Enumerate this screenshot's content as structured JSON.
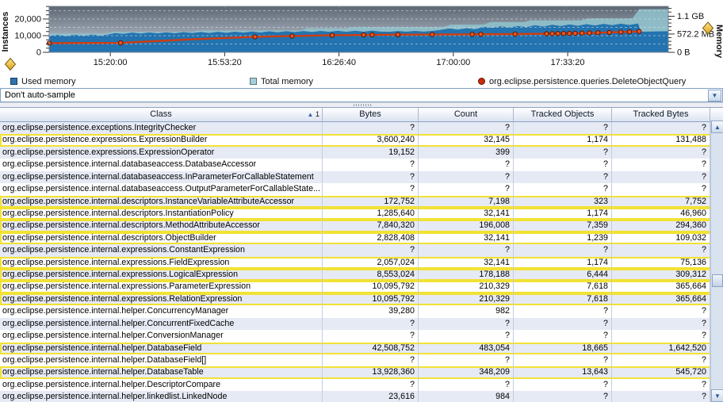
{
  "chart": {
    "legend": [
      {
        "label": "Used memory",
        "color": "#2e72b0",
        "shape": "square"
      },
      {
        "label": "Total memory",
        "color": "#a4d2da",
        "shape": "square"
      },
      {
        "label": "org.eclipse.persistence.queries.DeleteObjectQuery",
        "color": "#cc2b08",
        "shape": "circle"
      }
    ]
  },
  "chart_data": {
    "type": "area",
    "title": "",
    "x_axis": {
      "tick_labels": [
        "15:20:00",
        "15:53:20",
        "16:26:40",
        "17:00:00",
        "17:33:20"
      ],
      "tick_seconds": [
        1070,
        3070,
        5070,
        7070,
        9070
      ],
      "span_seconds": 10830
    },
    "y_left": {
      "title": "Instances",
      "tick_labels": [
        "0",
        "10,000",
        "20,000"
      ],
      "tick_values": [
        0,
        10000,
        20000
      ],
      "max": 27600,
      "minor_step": 2500
    },
    "y_right": {
      "title": "Memory",
      "tick_labels": [
        "0 B",
        "572.2 MB",
        "1.1 GB"
      ],
      "tick_mb": [
        0,
        572.2,
        1126.4
      ],
      "max_mb": 1436,
      "minor_step_mb": 114.4
    },
    "series": [
      {
        "name": "Total memory",
        "kind": "area",
        "axis": "right",
        "color": "#8fc3ce",
        "unit": "MB",
        "points": [
          [
            0,
            588
          ],
          [
            1000,
            588
          ],
          [
            1120,
            640
          ],
          [
            2500,
            640
          ],
          [
            2620,
            680
          ],
          [
            4400,
            680
          ],
          [
            4520,
            755
          ],
          [
            5200,
            755
          ],
          [
            5320,
            790
          ],
          [
            6900,
            790
          ],
          [
            7020,
            868
          ],
          [
            7600,
            868
          ],
          [
            7720,
            948
          ],
          [
            8300,
            948
          ],
          [
            8420,
            1000
          ],
          [
            9300,
            1000
          ],
          [
            9420,
            1058
          ],
          [
            10200,
            1058
          ],
          [
            10320,
            1350
          ],
          [
            10830,
            1350
          ]
        ]
      },
      {
        "name": "Used memory",
        "kind": "area",
        "axis": "right",
        "color": "#2273af",
        "unit": "MB",
        "points": [
          [
            0,
            510
          ],
          [
            150,
            545
          ],
          [
            300,
            505
          ],
          [
            450,
            550
          ],
          [
            600,
            515
          ],
          [
            750,
            555
          ],
          [
            900,
            520
          ],
          [
            1050,
            560
          ],
          [
            1150,
            600
          ],
          [
            1300,
            575
          ],
          [
            1450,
            615
          ],
          [
            1600,
            585
          ],
          [
            1750,
            620
          ],
          [
            1900,
            590
          ],
          [
            2050,
            625
          ],
          [
            2200,
            595
          ],
          [
            2350,
            630
          ],
          [
            2500,
            600
          ],
          [
            2650,
            635
          ],
          [
            2800,
            605
          ],
          [
            2950,
            640
          ],
          [
            3100,
            610
          ],
          [
            3250,
            645
          ],
          [
            3400,
            615
          ],
          [
            3550,
            650
          ],
          [
            3700,
            620
          ],
          [
            3850,
            655
          ],
          [
            4000,
            625
          ],
          [
            4150,
            660
          ],
          [
            4300,
            630
          ],
          [
            4450,
            665
          ],
          [
            4600,
            635
          ],
          [
            4750,
            670
          ],
          [
            4900,
            640
          ],
          [
            5050,
            672
          ],
          [
            5200,
            642
          ],
          [
            5350,
            675
          ],
          [
            5500,
            645
          ],
          [
            5650,
            678
          ],
          [
            5800,
            648
          ],
          [
            5950,
            640
          ],
          [
            6100,
            665
          ],
          [
            6250,
            645
          ],
          [
            6400,
            668
          ],
          [
            6550,
            648
          ],
          [
            6700,
            670
          ],
          [
            6850,
            700
          ],
          [
            7000,
            745
          ],
          [
            7150,
            710
          ],
          [
            7300,
            755
          ],
          [
            7450,
            720
          ],
          [
            7600,
            800
          ],
          [
            7750,
            765
          ],
          [
            7900,
            810
          ],
          [
            8050,
            775
          ],
          [
            8200,
            820
          ],
          [
            8350,
            785
          ],
          [
            8500,
            845
          ],
          [
            8650,
            805
          ],
          [
            8800,
            860
          ],
          [
            8950,
            820
          ],
          [
            9100,
            870
          ],
          [
            9250,
            830
          ],
          [
            9400,
            880
          ],
          [
            9550,
            840
          ],
          [
            9700,
            888
          ],
          [
            9850,
            848
          ],
          [
            10000,
            895
          ],
          [
            10150,
            855
          ],
          [
            10300,
            900
          ],
          [
            10360,
            645
          ],
          [
            10830,
            660
          ]
        ]
      },
      {
        "name": "org.eclipse.persistence.queries.DeleteObjectQuery",
        "kind": "line",
        "axis": "left",
        "color": "#d03c10",
        "unit": "instances",
        "points": [
          [
            0,
            5500,
            1
          ],
          [
            1250,
            5700,
            1
          ],
          [
            2500,
            7800,
            0
          ],
          [
            3600,
            9300,
            1
          ],
          [
            4250,
            9800,
            1
          ],
          [
            4950,
            10250,
            1
          ],
          [
            5500,
            10450,
            1
          ],
          [
            5650,
            10500,
            1
          ],
          [
            6100,
            10600,
            1
          ],
          [
            6700,
            10700,
            1
          ],
          [
            7400,
            10800,
            1
          ],
          [
            7550,
            10830,
            1
          ],
          [
            8150,
            10950,
            1
          ],
          [
            8700,
            11150,
            1
          ],
          [
            8800,
            11200,
            1
          ],
          [
            8900,
            11250,
            1
          ],
          [
            9000,
            11300,
            1
          ],
          [
            9100,
            11350,
            1
          ],
          [
            9200,
            11400,
            1
          ],
          [
            9320,
            11500,
            1
          ],
          [
            9450,
            11600,
            1
          ],
          [
            9600,
            11750,
            1
          ],
          [
            9800,
            11950,
            1
          ],
          [
            10000,
            12150,
            1
          ],
          [
            10150,
            12300,
            1
          ],
          [
            10320,
            12500,
            1
          ]
        ]
      }
    ]
  },
  "toolbar": {
    "sample_mode": "Don't auto-sample",
    "dropdown_arrow": "▼"
  },
  "table": {
    "columns": [
      {
        "label": "Class"
      },
      {
        "label": "Bytes"
      },
      {
        "label": "Count"
      },
      {
        "label": "Tracked Objects"
      },
      {
        "label": "Tracked Bytes"
      }
    ],
    "sort": {
      "indicator": "▲",
      "order_number": "1",
      "column": "Class"
    },
    "rows": [
      {
        "class": "org.eclipse.persistence.exceptions.IntegrityChecker",
        "bytes": "?",
        "count": "?",
        "tracked_objects": "?",
        "tracked_bytes": "?",
        "highlight": false
      },
      {
        "class": "org.eclipse.persistence.expressions.ExpressionBuilder",
        "bytes": "3,600,240",
        "count": "32,145",
        "tracked_objects": "1,174",
        "tracked_bytes": "131,488",
        "highlight": true
      },
      {
        "class": "org.eclipse.persistence.expressions.ExpressionOperator",
        "bytes": "19,152",
        "count": "399",
        "tracked_objects": "?",
        "tracked_bytes": "?",
        "highlight": false
      },
      {
        "class": "org.eclipse.persistence.internal.databaseaccess.DatabaseAccessor",
        "bytes": "?",
        "count": "?",
        "tracked_objects": "?",
        "tracked_bytes": "?",
        "highlight": false
      },
      {
        "class": "org.eclipse.persistence.internal.databaseaccess.InParameterForCallableStatement",
        "bytes": "?",
        "count": "?",
        "tracked_objects": "?",
        "tracked_bytes": "?",
        "highlight": false
      },
      {
        "class": "org.eclipse.persistence.internal.databaseaccess.OutputParameterForCallableState...",
        "bytes": "?",
        "count": "?",
        "tracked_objects": "?",
        "tracked_bytes": "?",
        "highlight": false
      },
      {
        "class": "org.eclipse.persistence.internal.descriptors.InstanceVariableAttributeAccessor",
        "bytes": "172,752",
        "count": "7,198",
        "tracked_objects": "323",
        "tracked_bytes": "7,752",
        "highlight": true
      },
      {
        "class": "org.eclipse.persistence.internal.descriptors.InstantiationPolicy",
        "bytes": "1,285,640",
        "count": "32,141",
        "tracked_objects": "1,174",
        "tracked_bytes": "46,960",
        "highlight": true
      },
      {
        "class": "org.eclipse.persistence.internal.descriptors.MethodAttributeAccessor",
        "bytes": "7,840,320",
        "count": "196,008",
        "tracked_objects": "7,359",
        "tracked_bytes": "294,360",
        "highlight": true
      },
      {
        "class": "org.eclipse.persistence.internal.descriptors.ObjectBuilder",
        "bytes": "2,828,408",
        "count": "32,141",
        "tracked_objects": "1,239",
        "tracked_bytes": "109,032",
        "highlight": true
      },
      {
        "class": "org.eclipse.persistence.internal.expressions.ConstantExpression",
        "bytes": "?",
        "count": "?",
        "tracked_objects": "?",
        "tracked_bytes": "?",
        "highlight": false
      },
      {
        "class": "org.eclipse.persistence.internal.expressions.FieldExpression",
        "bytes": "2,057,024",
        "count": "32,141",
        "tracked_objects": "1,174",
        "tracked_bytes": "75,136",
        "highlight": true
      },
      {
        "class": "org.eclipse.persistence.internal.expressions.LogicalExpression",
        "bytes": "8,553,024",
        "count": "178,188",
        "tracked_objects": "6,444",
        "tracked_bytes": "309,312",
        "highlight": true
      },
      {
        "class": "org.eclipse.persistence.internal.expressions.ParameterExpression",
        "bytes": "10,095,792",
        "count": "210,329",
        "tracked_objects": "7,618",
        "tracked_bytes": "365,664",
        "highlight": true
      },
      {
        "class": "org.eclipse.persistence.internal.expressions.RelationExpression",
        "bytes": "10,095,792",
        "count": "210,329",
        "tracked_objects": "7,618",
        "tracked_bytes": "365,664",
        "highlight": true
      },
      {
        "class": "org.eclipse.persistence.internal.helper.ConcurrencyManager",
        "bytes": "39,280",
        "count": "982",
        "tracked_objects": "?",
        "tracked_bytes": "?",
        "highlight": false
      },
      {
        "class": "org.eclipse.persistence.internal.helper.ConcurrentFixedCache",
        "bytes": "?",
        "count": "?",
        "tracked_objects": "?",
        "tracked_bytes": "?",
        "highlight": false
      },
      {
        "class": "org.eclipse.persistence.internal.helper.ConversionManager",
        "bytes": "?",
        "count": "?",
        "tracked_objects": "?",
        "tracked_bytes": "?",
        "highlight": false
      },
      {
        "class": "org.eclipse.persistence.internal.helper.DatabaseField",
        "bytes": "42,508,752",
        "count": "483,054",
        "tracked_objects": "18,665",
        "tracked_bytes": "1,642,520",
        "highlight": true
      },
      {
        "class": "org.eclipse.persistence.internal.helper.DatabaseField[]",
        "bytes": "?",
        "count": "?",
        "tracked_objects": "?",
        "tracked_bytes": "?",
        "highlight": false
      },
      {
        "class": "org.eclipse.persistence.internal.helper.DatabaseTable",
        "bytes": "13,928,360",
        "count": "348,209",
        "tracked_objects": "13,643",
        "tracked_bytes": "545,720",
        "highlight": true
      },
      {
        "class": "org.eclipse.persistence.internal.helper.DescriptorCompare",
        "bytes": "?",
        "count": "?",
        "tracked_objects": "?",
        "tracked_bytes": "?",
        "highlight": false
      },
      {
        "class": "org.eclipse.persistence.internal.helper.linkedlist.LinkedNode",
        "bytes": "23,616",
        "count": "984",
        "tracked_objects": "?",
        "tracked_bytes": "?",
        "highlight": false
      }
    ]
  },
  "scrollbar": {
    "up_arrow": "▲",
    "down_arrow": "▼"
  }
}
